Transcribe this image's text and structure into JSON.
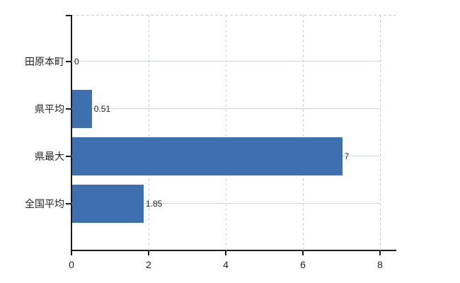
{
  "chart_data": {
    "type": "bar",
    "orientation": "horizontal",
    "title": "",
    "categories": [
      "田原本町",
      "県平均",
      "県最大",
      "全国平均"
    ],
    "values": [
      0,
      0.51,
      7,
      1.85
    ],
    "value_labels": [
      "0",
      "0.51",
      "7",
      "1.85"
    ],
    "x_ticks": [
      0,
      2,
      4,
      6,
      8
    ],
    "x_tick_labels": [
      "0",
      "2",
      "4",
      "6",
      "8"
    ],
    "xlim": [
      0,
      8
    ],
    "grid": {
      "vertical": "dashed",
      "horizontal": "solid",
      "plot_border": "dashed-top-right"
    },
    "legend": "none",
    "colors": {
      "bar": "#3e6fae",
      "gridline": "#ccd5cd",
      "plot_border_dash": "#d2ccd2",
      "axis": "#1a1a1a",
      "text": "#222222",
      "background": "#ffffff"
    }
  }
}
